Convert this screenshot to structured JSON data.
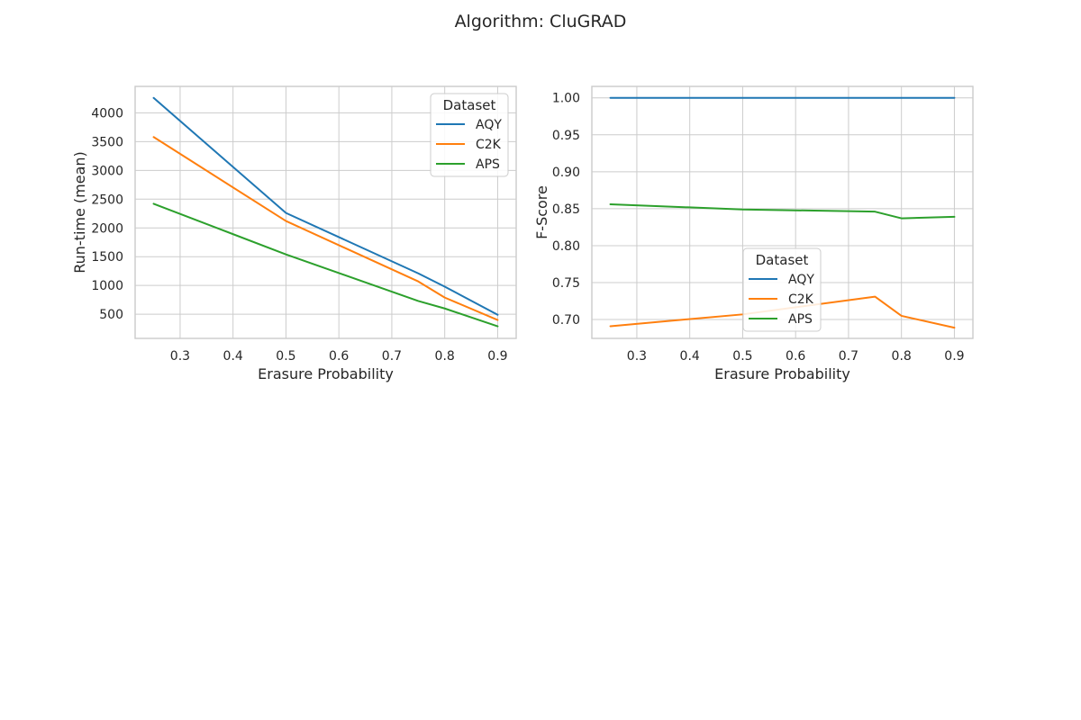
{
  "figure": {
    "title": "Algorithm: CluGRAD"
  },
  "chart_data": [
    {
      "type": "line",
      "title": "",
      "xlabel": "Erasure Probability",
      "ylabel": "Run-time (mean)",
      "xlim": [
        0.215,
        0.935
      ],
      "ylim": [
        80,
        4460
      ],
      "xticks": [
        0.3,
        0.4,
        0.5,
        0.6,
        0.7,
        0.8,
        0.9
      ],
      "xtick_labels": [
        "0.3",
        "0.4",
        "0.5",
        "0.6",
        "0.7",
        "0.8",
        "0.9"
      ],
      "yticks": [
        500,
        1000,
        1500,
        2000,
        2500,
        3000,
        3500,
        4000
      ],
      "ytick_labels": [
        "500",
        "1000",
        "1500",
        "2000",
        "2500",
        "3000",
        "3500",
        "4000"
      ],
      "grid": true,
      "legend": {
        "title": "Dataset",
        "placement": "top-right"
      },
      "series": [
        {
          "name": "AQY",
          "color": "#1f77b4",
          "x": [
            0.25,
            0.5,
            0.75,
            0.8,
            0.9
          ],
          "y": [
            4260,
            2260,
            1210,
            980,
            490
          ]
        },
        {
          "name": "C2K",
          "color": "#ff7f0e",
          "x": [
            0.25,
            0.5,
            0.75,
            0.8,
            0.9
          ],
          "y": [
            3580,
            2120,
            1070,
            790,
            400
          ]
        },
        {
          "name": "APS",
          "color": "#2ca02c",
          "x": [
            0.25,
            0.5,
            0.75,
            0.8,
            0.9
          ],
          "y": [
            2420,
            1540,
            730,
            600,
            290
          ]
        }
      ]
    },
    {
      "type": "line",
      "title": "",
      "xlabel": "Erasure Probability",
      "ylabel": "F-Score",
      "xlim": [
        0.215,
        0.935
      ],
      "ylim": [
        0.6745,
        1.0155
      ],
      "xticks": [
        0.3,
        0.4,
        0.5,
        0.6,
        0.7,
        0.8,
        0.9
      ],
      "xtick_labels": [
        "0.3",
        "0.4",
        "0.5",
        "0.6",
        "0.7",
        "0.8",
        "0.9"
      ],
      "yticks": [
        0.7,
        0.75,
        0.8,
        0.85,
        0.9,
        0.95,
        1.0
      ],
      "ytick_labels": [
        "0.70",
        "0.75",
        "0.80",
        "0.85",
        "0.90",
        "0.95",
        "1.00"
      ],
      "grid": true,
      "legend": {
        "title": "Dataset",
        "placement": "lower-center"
      },
      "series": [
        {
          "name": "AQY",
          "color": "#1f77b4",
          "x": [
            0.25,
            0.5,
            0.75,
            0.8,
            0.9
          ],
          "y": [
            1.0,
            1.0,
            1.0,
            1.0,
            1.0
          ]
        },
        {
          "name": "C2K",
          "color": "#ff7f0e",
          "x": [
            0.25,
            0.5,
            0.75,
            0.8,
            0.9
          ],
          "y": [
            0.691,
            0.707,
            0.731,
            0.705,
            0.689
          ]
        },
        {
          "name": "APS",
          "color": "#2ca02c",
          "x": [
            0.25,
            0.5,
            0.75,
            0.8,
            0.9
          ],
          "y": [
            0.856,
            0.849,
            0.846,
            0.837,
            0.839
          ]
        }
      ]
    }
  ]
}
